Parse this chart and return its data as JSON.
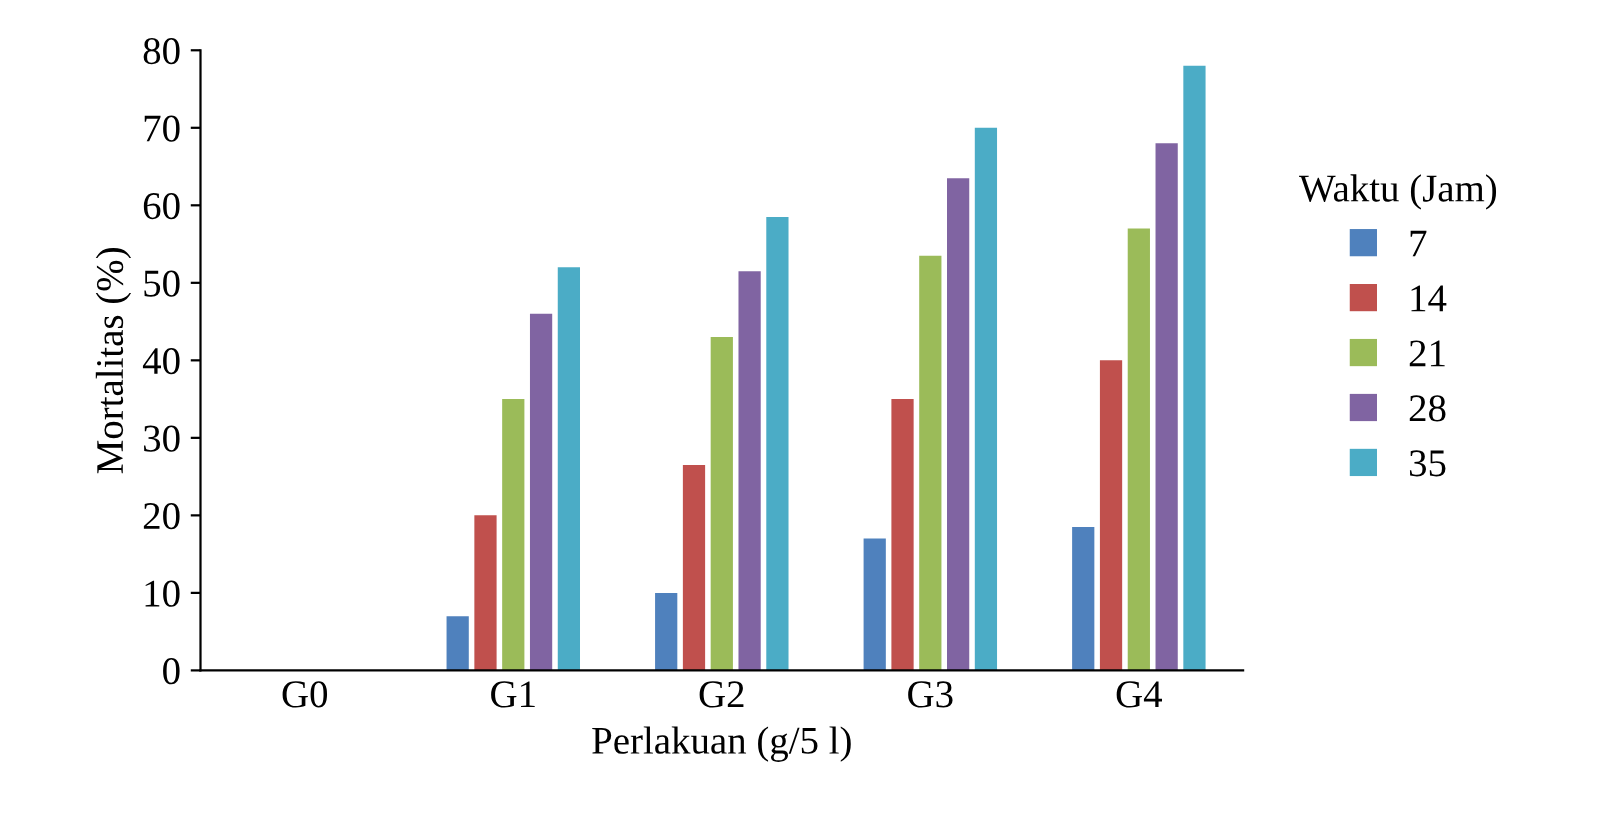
{
  "chart_data": {
    "type": "bar",
    "xlabel": "Perlakuan (g/5 l)",
    "ylabel": "Mortalitas (%)",
    "legend_title": "Waktu (Jam)",
    "categories": [
      "G0",
      "G1",
      "G2",
      "G3",
      "G4"
    ],
    "series": [
      {
        "name": "7",
        "color": "#4f81bd",
        "values": [
          0,
          7,
          10,
          17,
          18.5
        ]
      },
      {
        "name": "14",
        "color": "#c0504d",
        "values": [
          0,
          20,
          26.5,
          35,
          40
        ]
      },
      {
        "name": "21",
        "color": "#9bbb59",
        "values": [
          0,
          35,
          43,
          53.5,
          57
        ]
      },
      {
        "name": "28",
        "color": "#8064a2",
        "values": [
          0,
          46,
          51.5,
          63.5,
          68
        ]
      },
      {
        "name": "35",
        "color": "#4bacc6",
        "values": [
          0,
          52,
          58.5,
          70,
          78
        ]
      }
    ],
    "ylim": [
      0,
      80
    ],
    "yticks": [
      0,
      10,
      20,
      30,
      40,
      50,
      60,
      70,
      80
    ],
    "grid": false,
    "legend": "right"
  }
}
